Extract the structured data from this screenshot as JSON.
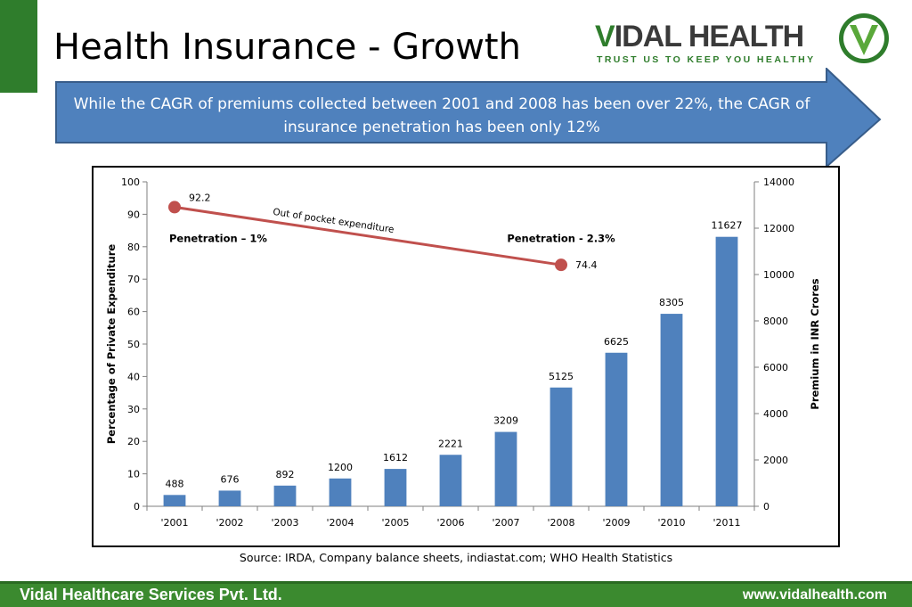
{
  "header": {
    "title": "Health Insurance - Growth",
    "logo_main": "IDAL HEALTH",
    "logo_v": "V",
    "logo_tagline": "TRUST US TO KEEP YOU HEALTHY"
  },
  "callout": {
    "text": "While the CAGR of premiums collected between 2001 and 2008 has been over 22%, the CAGR of insurance penetration has been only 12%"
  },
  "chart_data": {
    "type": "bar",
    "categories": [
      "'2001",
      "'2002",
      "'2003",
      "'2004",
      "'2005",
      "'2006",
      "'2007",
      "'2008",
      "'2009",
      "'2010",
      "'2011"
    ],
    "values": [
      488,
      676,
      892,
      1200,
      1612,
      2221,
      3209,
      5125,
      6625,
      8305,
      11627
    ],
    "bar_color": "#4f81bd",
    "y_left": {
      "label": "Percentage of Private Expenditure",
      "ticks": [
        0,
        10,
        20,
        30,
        40,
        50,
        60,
        70,
        80,
        90,
        100
      ],
      "ylim": [
        0,
        100
      ]
    },
    "y_right": {
      "label": "Premium in INR Crores",
      "ticks": [
        0,
        2000,
        4000,
        6000,
        8000,
        10000,
        12000,
        14000
      ],
      "ylim": [
        0,
        14000
      ]
    },
    "line": {
      "name": "Out of pocket expenditure",
      "color": "#c0504d",
      "points": [
        {
          "x": "'2001",
          "y": 92.2,
          "label": "92.2"
        },
        {
          "x": "'2008",
          "y": 74.4,
          "label": "74.4"
        }
      ]
    },
    "annotations": [
      {
        "text": "Penetration – 1%",
        "near": "'2001"
      },
      {
        "text": "Penetration - 2.3%",
        "near": "'2008"
      }
    ],
    "grid": false
  },
  "source": "Source: IRDA, Company balance sheets, indiastat.com; WHO Health Statistics",
  "footer": {
    "company": "Vidal Healthcare Services Pvt. Ltd.",
    "website": "www.vidalhealth.com"
  }
}
